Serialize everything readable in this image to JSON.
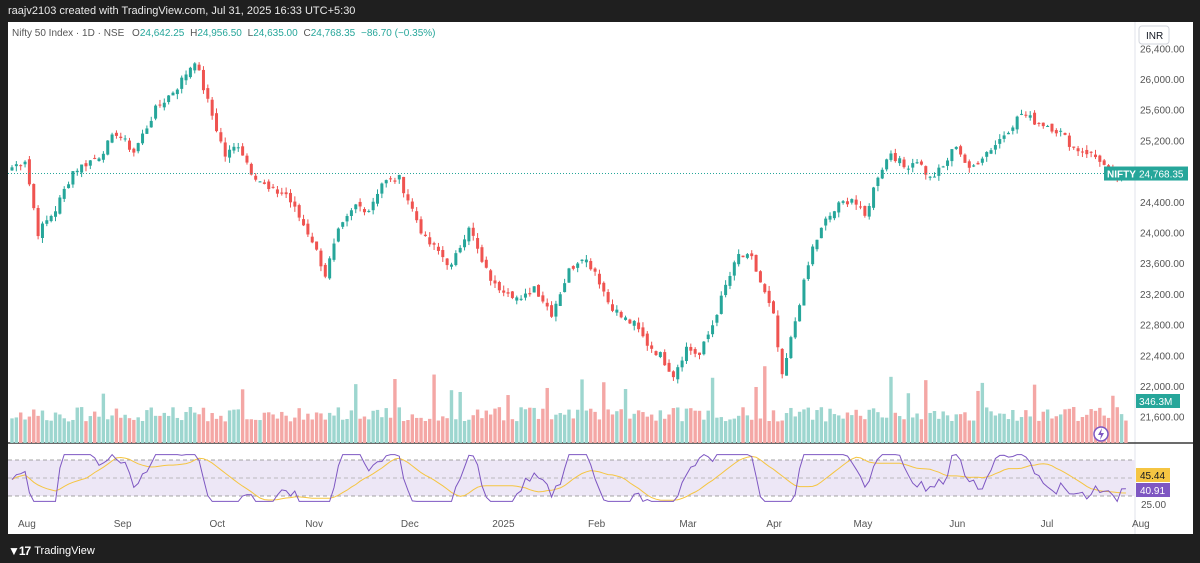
{
  "header": {
    "attribution": "raajv2103 created with TradingView.com, Jul 31, 2025 16:33 UTC+5:30"
  },
  "legend": {
    "symbol": "Nifty 50 Index · 1D · NSE",
    "o_label": "O",
    "o_value": "24,642.25",
    "h_label": "H",
    "h_value": "24,956.50",
    "l_label": "L",
    "l_value": "24,635.00",
    "c_label": "C",
    "c_value": "24,768.35",
    "change": "−86.70 (−0.35%)"
  },
  "currency": "INR",
  "last_price_tag": {
    "symbol": "NIFTY",
    "price": "24,768.35"
  },
  "volume_tag": "346.3M",
  "rsi": {
    "tags": [
      "45.44",
      "40.91"
    ],
    "axis_label": "25.00"
  },
  "footer": {
    "brand": "TradingView"
  },
  "colors": {
    "up": "#26a69a",
    "down": "#ef5350",
    "up_vol": "#9dd6cf",
    "down_vol": "#f4a7a5",
    "rsi": "#7e57c2",
    "rsi_ma": "#f5c542",
    "rsi_bg": "#ede7f6"
  },
  "chart_data": {
    "type": "candlestick",
    "price_ticks": [
      "26,400.00",
      "26,000.00",
      "25,600.00",
      "25,200.00",
      "24,800.00",
      "24,400.00",
      "24,000.00",
      "23,600.00",
      "23,200.00",
      "22,800.00",
      "22,400.00",
      "22,000.00",
      "21,600.00"
    ],
    "price_tick_values": [
      26400,
      26000,
      25600,
      25200,
      24800,
      24400,
      24000,
      23600,
      23200,
      22800,
      22400,
      22000,
      21600
    ],
    "x_labels": [
      "Aug",
      "Sep",
      "Oct",
      "Nov",
      "Dec",
      "2025",
      "Feb",
      "Mar",
      "Apr",
      "May",
      "Jun",
      "Jul",
      "Aug"
    ],
    "x_label_days": [
      0,
      22,
      44,
      66,
      88,
      109,
      131,
      152,
      172,
      192,
      214,
      235,
      256
    ],
    "last_close": 24768.35,
    "anchors": [
      [
        0,
        24850
      ],
      [
        3,
        24950
      ],
      [
        6,
        24000
      ],
      [
        10,
        24300
      ],
      [
        14,
        24800
      ],
      [
        20,
        25000
      ],
      [
        24,
        25300
      ],
      [
        28,
        25050
      ],
      [
        33,
        25600
      ],
      [
        38,
        25900
      ],
      [
        42,
        26250
      ],
      [
        45,
        25700
      ],
      [
        49,
        25000
      ],
      [
        52,
        25150
      ],
      [
        55,
        24800
      ],
      [
        59,
        24550
      ],
      [
        63,
        24500
      ],
      [
        66,
        24200
      ],
      [
        69,
        23900
      ],
      [
        72,
        23450
      ],
      [
        75,
        24000
      ],
      [
        79,
        24350
      ],
      [
        82,
        24300
      ],
      [
        85,
        24650
      ],
      [
        89,
        24700
      ],
      [
        92,
        24300
      ],
      [
        95,
        23900
      ],
      [
        98,
        23750
      ],
      [
        101,
        23550
      ],
      [
        105,
        24100
      ],
      [
        108,
        23600
      ],
      [
        111,
        23300
      ],
      [
        114,
        23250
      ],
      [
        117,
        23100
      ],
      [
        120,
        23300
      ],
      [
        124,
        22950
      ],
      [
        128,
        23500
      ],
      [
        131,
        23700
      ],
      [
        134,
        23500
      ],
      [
        137,
        23100
      ],
      [
        140,
        22900
      ],
      [
        143,
        22800
      ],
      [
        146,
        22550
      ],
      [
        149,
        22400
      ],
      [
        152,
        22150
      ],
      [
        155,
        22500
      ],
      [
        158,
        22400
      ],
      [
        161,
        22800
      ],
      [
        164,
        23300
      ],
      [
        167,
        23700
      ],
      [
        170,
        23650
      ],
      [
        173,
        23200
      ],
      [
        175,
        22900
      ],
      [
        177,
        22100
      ],
      [
        179,
        22600
      ],
      [
        181,
        23100
      ],
      [
        184,
        23800
      ],
      [
        187,
        24150
      ],
      [
        190,
        24350
      ],
      [
        193,
        24450
      ],
      [
        196,
        24200
      ],
      [
        199,
        24750
      ],
      [
        202,
        25050
      ],
      [
        205,
        24850
      ],
      [
        208,
        24950
      ],
      [
        211,
        24700
      ],
      [
        214,
        24850
      ],
      [
        217,
        25150
      ],
      [
        220,
        24800
      ],
      [
        223,
        25000
      ],
      [
        226,
        25150
      ],
      [
        229,
        25350
      ],
      [
        232,
        25550
      ],
      [
        235,
        25450
      ],
      [
        238,
        25400
      ],
      [
        241,
        25300
      ],
      [
        244,
        25100
      ],
      [
        247,
        25050
      ],
      [
        250,
        24950
      ],
      [
        253,
        24700
      ],
      [
        256,
        24768
      ]
    ],
    "volume_range": [
      0,
      700
    ],
    "rsi_ylim": [
      20,
      80
    ],
    "rsi_bands": [
      70,
      50,
      30
    ]
  }
}
